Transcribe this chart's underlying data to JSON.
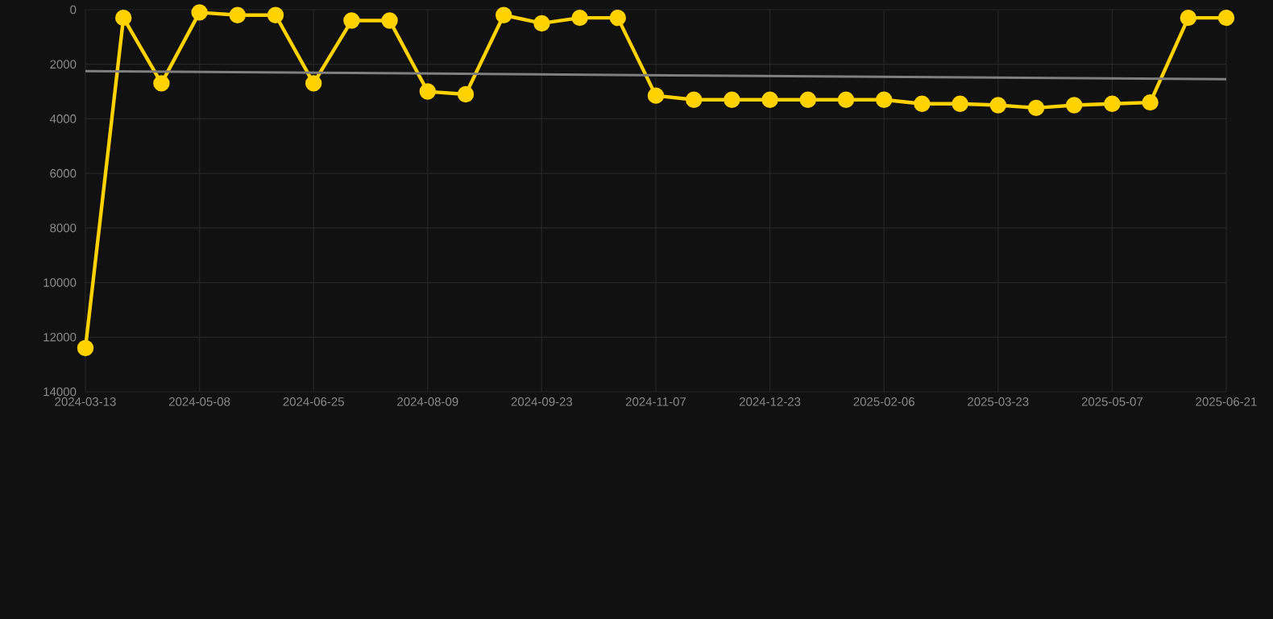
{
  "chart_data": {
    "type": "line",
    "grid": true,
    "marker": "circle",
    "line_style": "solid",
    "categories": [
      "2024-03-13",
      null,
      null,
      "2024-05-08",
      null,
      null,
      "2024-06-25",
      null,
      null,
      "2024-08-09",
      null,
      null,
      "2024-09-23",
      null,
      null,
      "2024-11-07",
      null,
      null,
      "2024-12-23",
      null,
      null,
      "2025-02-06",
      null,
      null,
      "2025-03-23",
      null,
      null,
      "2025-05-07",
      null,
      null,
      "2025-06-21"
    ],
    "ylim": [
      14000,
      0
    ],
    "yticks": [
      0,
      2000,
      4000,
      6000,
      8000,
      10000,
      12000,
      14000
    ],
    "series": [
      {
        "color": "#ffd200",
        "values": [
          12400,
          300,
          2700,
          100,
          200,
          200,
          2700,
          400,
          400,
          3000,
          3100,
          200,
          500,
          300,
          300,
          3150,
          3300,
          3300,
          3300,
          3300,
          3300,
          3300,
          3450,
          3450,
          3500,
          3600,
          3500,
          3450,
          3400,
          300,
          300
        ]
      },
      {
        "type": "line",
        "color": "#7f7f7f",
        "marker": "none",
        "values": [
          2250,
          null,
          null,
          null,
          null,
          null,
          null,
          null,
          null,
          null,
          null,
          null,
          null,
          null,
          null,
          null,
          null,
          null,
          null,
          null,
          null,
          null,
          null,
          null,
          null,
          null,
          null,
          null,
          null,
          null,
          2550
        ]
      }
    ]
  }
}
